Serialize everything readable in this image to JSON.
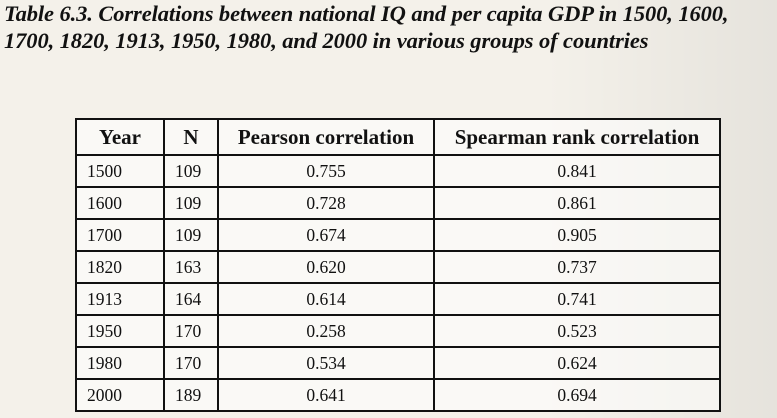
{
  "caption": {
    "label": "Table 6.3.",
    "text": "Correlations between national IQ and per capita GDP in 1500, 1600, 1700, 1820, 1913, 1950, 1980, and 2000 in various groups of countries"
  },
  "table": {
    "headers": [
      "Year",
      "N",
      "Pearson correlation",
      "Spearman rank correlation"
    ],
    "rows": [
      {
        "year": "1500",
        "n": "109",
        "pearson": "0.755",
        "spearman": "0.841"
      },
      {
        "year": "1600",
        "n": "109",
        "pearson": "0.728",
        "spearman": "0.861"
      },
      {
        "year": "1700",
        "n": "109",
        "pearson": "0.674",
        "spearman": "0.905"
      },
      {
        "year": "1820",
        "n": "163",
        "pearson": "0.620",
        "spearman": "0.737"
      },
      {
        "year": "1913",
        "n": "164",
        "pearson": "0.614",
        "spearman": "0.741"
      },
      {
        "year": "1950",
        "n": "170",
        "pearson": "0.258",
        "spearman": "0.523"
      },
      {
        "year": "1980",
        "n": "170",
        "pearson": "0.534",
        "spearman": "0.624"
      },
      {
        "year": "2000",
        "n": "189",
        "pearson": "0.641",
        "spearman": "0.694"
      }
    ]
  }
}
